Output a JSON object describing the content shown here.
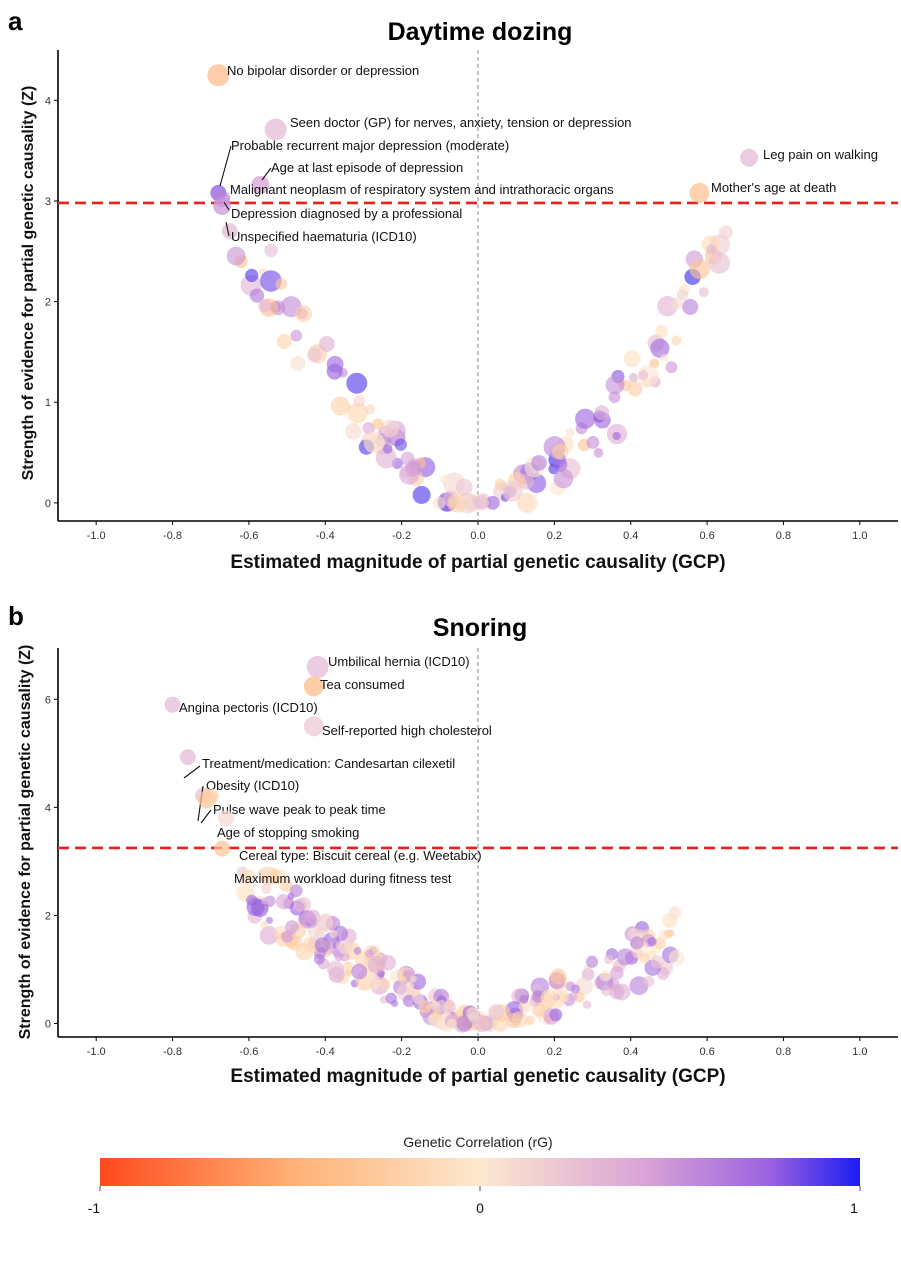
{
  "chart_data": [
    {
      "panel": "a",
      "type": "scatter",
      "title": "Daytime dozing",
      "xlabel": "Estimated magnitude of partial genetic causality (GCP)",
      "ylabel": "Strength of evidence for partial genetic causality (Z)",
      "xlim": [
        -1.1,
        1.1
      ],
      "ylim": [
        -0.18,
        4.5
      ],
      "xticks": [
        "-1.0",
        "-0.8",
        "-0.6",
        "-0.4",
        "-0.2",
        "0.0",
        "0.2",
        "0.4",
        "0.6",
        "0.8",
        "1.0"
      ],
      "xtick_values": [
        -1.0,
        -0.8,
        -0.6,
        -0.4,
        -0.2,
        0.0,
        0.2,
        0.4,
        0.6,
        0.8,
        1.0
      ],
      "yticks": [
        "0",
        "1",
        "2",
        "3",
        "4"
      ],
      "ytick_values": [
        0,
        1,
        2,
        3,
        4
      ],
      "threshold": 2.98,
      "threshold_color": "#e8211d",
      "annotations": [
        {
          "label": "No bipolar disorder or depression",
          "x": -0.68,
          "y": 4.25,
          "rg": -0.4,
          "s": 11
        },
        {
          "label": "Seen doctor (GP) for nerves, anxiety, tension or depression",
          "x": -0.53,
          "y": 3.71,
          "rg": 0.3,
          "s": 11
        },
        {
          "label": "Probable recurrent major depression (moderate)",
          "x": -0.68,
          "y": 3.08,
          "rg": 0.8,
          "s": 8
        },
        {
          "label": "Age at last episode of depression",
          "x": -0.57,
          "y": 3.16,
          "rg": 0.45,
          "s": 9
        },
        {
          "label": "Malignant neoplasm of respiratory system and intrathoracic organs",
          "x": -0.67,
          "y": 3.02,
          "rg": 0.6,
          "s": 8
        },
        {
          "label": "Depression diagnosed by a professional",
          "x": -0.67,
          "y": 2.95,
          "rg": 0.5,
          "s": 9
        },
        {
          "label": "Unspecified haematuria (ICD10)",
          "x": -0.65,
          "y": 2.7,
          "rg": 0.3,
          "s": 8
        },
        {
          "label": "Leg pain on walking",
          "x": 0.71,
          "y": 3.43,
          "rg": 0.3,
          "s": 9
        },
        {
          "label": "Mother's age at death",
          "x": 0.58,
          "y": 3.08,
          "rg": -0.35,
          "s": 10
        }
      ]
    },
    {
      "panel": "b",
      "type": "scatter",
      "title": "Snoring",
      "xlabel": "Estimated magnitude of partial genetic causality (GCP)",
      "ylabel": "Strength of evidence for partial genetic causality (Z)",
      "xlim": [
        -1.1,
        1.1
      ],
      "ylim": [
        -0.25,
        6.95
      ],
      "xticks": [
        "-1.0",
        "-0.8",
        "-0.6",
        "-0.4",
        "-0.2",
        "0.0",
        "0.2",
        "0.4",
        "0.6",
        "0.8",
        "1.0"
      ],
      "xtick_values": [
        -1.0,
        -0.8,
        -0.6,
        -0.4,
        -0.2,
        0.0,
        0.2,
        0.4,
        0.6,
        0.8,
        1.0
      ],
      "yticks": [
        "0",
        "2",
        "4",
        "6"
      ],
      "ytick_values": [
        0,
        2,
        4,
        6
      ],
      "threshold": 3.25,
      "threshold_color": "#e8211d",
      "annotations": [
        {
          "label": "Umbilical hernia (ICD10)",
          "x": -0.42,
          "y": 6.6,
          "rg": 0.3,
          "s": 11
        },
        {
          "label": "Tea consumed",
          "x": -0.43,
          "y": 6.24,
          "rg": -0.4,
          "s": 10
        },
        {
          "label": "Angina pectoris (ICD10)",
          "x": -0.8,
          "y": 5.9,
          "rg": 0.3,
          "s": 8
        },
        {
          "label": "Self-reported high cholesterol",
          "x": -0.43,
          "y": 5.5,
          "rg": 0.2,
          "s": 10
        },
        {
          "label": "Treatment/medication: Candesartan cilexetil",
          "x": -0.76,
          "y": 4.93,
          "rg": 0.3,
          "s": 8
        },
        {
          "label": "Obesity (ICD10)",
          "x": -0.72,
          "y": 4.22,
          "rg": 0.25,
          "s": 8
        },
        {
          "label": "Pulse wave peak to peak time",
          "x": -0.71,
          "y": 4.15,
          "rg": -0.3,
          "s": 9
        },
        {
          "label": "Age of stopping smoking",
          "x": -0.7,
          "y": 4.2,
          "rg": -0.2,
          "s": 8
        },
        {
          "label": "Cereal type: Biscuit cereal (e.g. Weetabix)",
          "x": -0.66,
          "y": 3.8,
          "rg": 0.1,
          "s": 8
        },
        {
          "label": "Maximum workload during fitness test",
          "x": -0.67,
          "y": 3.24,
          "rg": -0.3,
          "s": 8
        }
      ]
    }
  ],
  "legend": {
    "title": "Genetic Correlation (rG)",
    "ticks": [
      "-1",
      "0",
      "1"
    ],
    "tick_values": [
      -1,
      0,
      1
    ],
    "colors": [
      "#ff4a1c",
      "#ffb074",
      "#fde8cf",
      "#d9a2d6",
      "#9b63e0",
      "#1c1cf2"
    ]
  }
}
